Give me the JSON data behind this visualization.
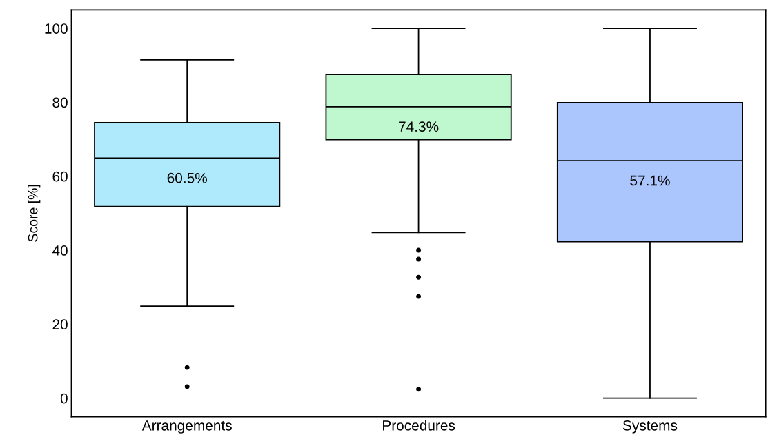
{
  "chart_data": {
    "type": "box",
    "ylabel": "Score [%]",
    "categories": [
      "Arrangements",
      "Procedures",
      "Systems"
    ],
    "colors": [
      "#aeeafb",
      "#bff7cf",
      "#abc5fd"
    ],
    "boxes": [
      {
        "low": 24.9,
        "q1": 51.8,
        "median": 64.9,
        "q3": 74.5,
        "high": 91.5,
        "outliers": [
          8.3,
          3.1
        ]
      },
      {
        "low": 44.8,
        "q1": 69.9,
        "median": 78.8,
        "q3": 87.5,
        "high": 100,
        "outliers": [
          40.0,
          37.6,
          32.7,
          27.5,
          2.4
        ]
      },
      {
        "low": 0,
        "q1": 42.3,
        "median": 64.2,
        "q3": 79.9,
        "high": 100
      }
    ],
    "annotations": [
      "60.5%",
      "74.3%",
      "57.1%"
    ],
    "ylim": [
      -5,
      105
    ],
    "yticks": [
      0,
      20,
      40,
      60,
      80,
      100
    ],
    "grid": false
  }
}
